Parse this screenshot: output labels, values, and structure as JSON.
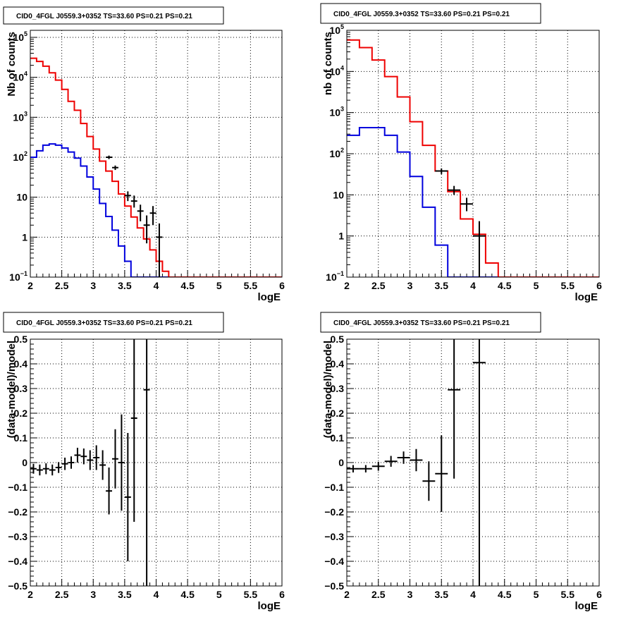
{
  "chart_data": [
    {
      "id": "top-left",
      "type": "histogram",
      "title": "CID0_4FGL J0559.3+0352 TS=33.60 PS=0.21 PS=0.21",
      "xlabel": "logE",
      "ylabel": "Nb of counts",
      "log_y": true,
      "xlim": [
        2,
        6
      ],
      "ylim": [
        0.1,
        150000
      ],
      "grid": true,
      "x_ticks": [
        "2",
        "2.5",
        "3",
        "3.5",
        "4",
        "4.5",
        "5",
        "5.5",
        "6"
      ],
      "y_ticks": [
        {
          "value": 0.1,
          "base": "10",
          "exp": "−1"
        },
        {
          "value": 1,
          "label": "1"
        },
        {
          "value": 10,
          "label": "10"
        },
        {
          "value": 100,
          "base": "10",
          "exp": "2"
        },
        {
          "value": 1000,
          "base": "10",
          "exp": "3"
        },
        {
          "value": 10000,
          "base": "10",
          "exp": "4"
        },
        {
          "value": 100000,
          "base": "10",
          "exp": "5"
        }
      ],
      "bin_edges": [
        2.0,
        2.1,
        2.2,
        2.3,
        2.4,
        2.5,
        2.6,
        2.7,
        2.8,
        2.9,
        3.0,
        3.1,
        3.2,
        3.3,
        3.4,
        3.5,
        3.6,
        3.7,
        3.8,
        3.9,
        4.0,
        4.1,
        4.2,
        4.3,
        4.4,
        4.5,
        4.6,
        4.7,
        4.8,
        4.9,
        5.0,
        5.1,
        5.2,
        5.3,
        5.4,
        5.5,
        5.6,
        5.7,
        5.8,
        5.9,
        6.0
      ],
      "model": {
        "color": "#ee0000",
        "values": [
          30000,
          25000,
          19000,
          13000,
          8500,
          5000,
          2500,
          1500,
          700,
          330,
          160,
          80,
          45,
          25,
          12,
          6,
          3.2,
          1.7,
          0.9,
          0.48,
          0.25,
          0.14,
          0.08,
          0.05,
          0.03,
          0.02,
          0.015,
          0.01,
          0.01,
          0.01,
          0.01,
          0.01,
          0.01,
          0.01,
          0.01,
          0.01,
          0.01,
          0.01,
          0.01,
          0.01
        ]
      },
      "component": {
        "color": "#0000dd",
        "values": [
          100,
          145,
          200,
          215,
          200,
          170,
          135,
          95,
          60,
          32,
          16,
          7,
          3.3,
          1.5,
          0.6,
          0.25,
          0.1,
          0.05,
          0.02,
          0.01,
          0.01,
          0.01,
          0.01,
          0.01,
          0.01,
          0.01,
          0.01,
          0.01,
          0.01,
          0.01,
          0.01,
          0.01,
          0.01,
          0.01,
          0.01,
          0.01,
          0.01,
          0.01,
          0.01,
          0.01
        ]
      },
      "data_points": [
        {
          "x": 3.25,
          "y": 100,
          "ylo": 90,
          "yhi": 110,
          "xerr": 0.05
        },
        {
          "x": 3.35,
          "y": 55,
          "ylo": 48,
          "yhi": 62,
          "xerr": 0.05
        },
        {
          "x": 3.55,
          "y": 11,
          "ylo": 8,
          "yhi": 14,
          "xerr": 0.05
        },
        {
          "x": 3.65,
          "y": 8,
          "ylo": 5.5,
          "yhi": 11,
          "xerr": 0.05
        },
        {
          "x": 3.75,
          "y": 4.5,
          "ylo": 2.5,
          "yhi": 6.5,
          "xerr": 0.05
        },
        {
          "x": 3.85,
          "y": 2,
          "ylo": 0.7,
          "yhi": 3.5,
          "xerr": 0.05
        },
        {
          "x": 3.95,
          "y": 4,
          "ylo": 2,
          "yhi": 6,
          "xerr": 0.05
        },
        {
          "x": 4.05,
          "y": 1,
          "ylo": 0.1,
          "yhi": 2.2,
          "xerr": 0.05
        }
      ]
    },
    {
      "id": "top-right",
      "type": "histogram",
      "title": "CID0_4FGL J0559.3+0352 TS=33.60 PS=0.21 PS=0.21",
      "xlabel": "logE",
      "ylabel": "nb of counts",
      "log_y": true,
      "xlim": [
        2,
        6
      ],
      "ylim": [
        0.1,
        100000
      ],
      "grid": true,
      "x_ticks": [
        "2",
        "2.5",
        "3",
        "3.5",
        "4",
        "4.5",
        "5",
        "5.5",
        "6"
      ],
      "y_ticks": [
        {
          "value": 0.1,
          "base": "10",
          "exp": "−1"
        },
        {
          "value": 1,
          "label": "1"
        },
        {
          "value": 10,
          "label": "10"
        },
        {
          "value": 100,
          "base": "10",
          "exp": "2"
        },
        {
          "value": 1000,
          "base": "10",
          "exp": "3"
        },
        {
          "value": 10000,
          "base": "10",
          "exp": "4"
        },
        {
          "value": 100000,
          "base": "10",
          "exp": "5"
        }
      ],
      "bin_edges": [
        2.0,
        2.2,
        2.4,
        2.6,
        2.8,
        3.0,
        3.2,
        3.4,
        3.6,
        3.8,
        4.0,
        4.2,
        4.4,
        4.6,
        4.8,
        5.0,
        5.2,
        5.4,
        5.6,
        5.8,
        6.0
      ],
      "model": {
        "color": "#ee0000",
        "values": [
          58000,
          38000,
          19000,
          7500,
          2400,
          600,
          160,
          38,
          12,
          2.6,
          1.1,
          0.22,
          0.05,
          0.02,
          0.01,
          0.01,
          0.01,
          0.01,
          0.01,
          0.01
        ]
      },
      "component": {
        "color": "#0000dd",
        "values": [
          280,
          430,
          430,
          280,
          110,
          28,
          5,
          0.6,
          0.06,
          0.01,
          0.01,
          0.01,
          0.01,
          0.01,
          0.01,
          0.01,
          0.01,
          0.01,
          0.01,
          0.01
        ]
      },
      "data_points": [
        {
          "x": 3.5,
          "y": 38,
          "ylo": 32,
          "yhi": 44,
          "xerr": 0.1
        },
        {
          "x": 3.7,
          "y": 13,
          "ylo": 10,
          "yhi": 16.5,
          "xerr": 0.1
        },
        {
          "x": 3.9,
          "y": 6,
          "ylo": 4,
          "yhi": 8.5,
          "xerr": 0.1
        },
        {
          "x": 4.1,
          "y": 1,
          "ylo": 0.1,
          "yhi": 2.3,
          "xerr": 0.1
        }
      ]
    },
    {
      "id": "bottom-left",
      "type": "scatter",
      "title": "CID0_4FGL J0559.3+0352 TS=33.60 PS=0.21 PS=0.21",
      "xlabel": "logE",
      "ylabel": "(data-model)/model",
      "log_y": false,
      "xlim": [
        2,
        6
      ],
      "ylim": [
        -0.5,
        0.5
      ],
      "grid": true,
      "x_ticks": [
        "2",
        "2.5",
        "3",
        "3.5",
        "4",
        "4.5",
        "5",
        "5.5",
        "6"
      ],
      "y_ticks": [
        {
          "value": 0.5,
          "label": "0.5"
        },
        {
          "value": 0.4,
          "label": "0.4"
        },
        {
          "value": 0.3,
          "label": "0.3"
        },
        {
          "value": 0.2,
          "label": "0.2"
        },
        {
          "value": 0.1,
          "label": "0.1"
        },
        {
          "value": 0,
          "label": "0"
        },
        {
          "value": -0.1,
          "label": "−0.1"
        },
        {
          "value": -0.2,
          "label": "−0.2"
        },
        {
          "value": -0.3,
          "label": "−0.3"
        },
        {
          "value": -0.4,
          "label": "−0.4"
        },
        {
          "value": -0.5,
          "label": "−0.5"
        }
      ],
      "data_points": [
        {
          "x": 2.05,
          "y": -0.025,
          "err": 0.02,
          "xerr": 0.05
        },
        {
          "x": 2.15,
          "y": -0.03,
          "err": 0.022,
          "xerr": 0.05
        },
        {
          "x": 2.25,
          "y": -0.025,
          "err": 0.022,
          "xerr": 0.05
        },
        {
          "x": 2.35,
          "y": -0.03,
          "err": 0.022,
          "xerr": 0.05
        },
        {
          "x": 2.45,
          "y": -0.02,
          "err": 0.022,
          "xerr": 0.05
        },
        {
          "x": 2.55,
          "y": -0.005,
          "err": 0.025,
          "xerr": 0.05
        },
        {
          "x": 2.65,
          "y": 0.0,
          "err": 0.025,
          "xerr": 0.05
        },
        {
          "x": 2.75,
          "y": 0.03,
          "err": 0.03,
          "xerr": 0.05
        },
        {
          "x": 2.85,
          "y": 0.025,
          "err": 0.032,
          "xerr": 0.05
        },
        {
          "x": 2.95,
          "y": 0.01,
          "err": 0.04,
          "xerr": 0.05
        },
        {
          "x": 3.05,
          "y": 0.02,
          "err": 0.05,
          "xerr": 0.05
        },
        {
          "x": 3.15,
          "y": -0.01,
          "err": 0.06,
          "xerr": 0.05
        },
        {
          "x": 3.25,
          "y": -0.115,
          "err": 0.095,
          "xerr": 0.05
        },
        {
          "x": 3.35,
          "y": 0.015,
          "err": 0.12,
          "xerr": 0.05
        },
        {
          "x": 3.45,
          "y": 0.0,
          "err": 0.195,
          "xerr": 0.05
        },
        {
          "x": 3.55,
          "y": -0.14,
          "err": 0.26,
          "xerr": 0.05
        },
        {
          "x": 3.65,
          "y": 0.18,
          "err": 0.42,
          "xerr": 0.05
        },
        {
          "x": 3.85,
          "y": 0.295,
          "err": 1.2,
          "xerr": 0.05
        }
      ]
    },
    {
      "id": "bottom-right",
      "type": "scatter",
      "title": "CID0_4FGL J0559.3+0352 TS=33.60 PS=0.21 PS=0.21",
      "xlabel": "logE",
      "ylabel": "(data-model)/model",
      "log_y": false,
      "xlim": [
        2,
        6
      ],
      "ylim": [
        -0.5,
        0.5
      ],
      "grid": true,
      "x_ticks": [
        "2",
        "2.5",
        "3",
        "3.5",
        "4",
        "4.5",
        "5",
        "5.5",
        "6"
      ],
      "y_ticks": [
        {
          "value": 0.5,
          "label": "0.5"
        },
        {
          "value": 0.4,
          "label": "0.4"
        },
        {
          "value": 0.3,
          "label": "0.3"
        },
        {
          "value": 0.2,
          "label": "0.2"
        },
        {
          "value": 0.1,
          "label": "0.1"
        },
        {
          "value": 0,
          "label": "0"
        },
        {
          "value": -0.1,
          "label": "−0.1"
        },
        {
          "value": -0.2,
          "label": "−0.2"
        },
        {
          "value": -0.3,
          "label": "−0.3"
        },
        {
          "value": -0.4,
          "label": "−0.4"
        },
        {
          "value": -0.5,
          "label": "−0.5"
        }
      ],
      "data_points": [
        {
          "x": 2.1,
          "y": -0.025,
          "err": 0.015,
          "xerr": 0.1
        },
        {
          "x": 2.3,
          "y": -0.025,
          "err": 0.015,
          "xerr": 0.1
        },
        {
          "x": 2.5,
          "y": -0.015,
          "err": 0.018,
          "xerr": 0.1
        },
        {
          "x": 2.7,
          "y": 0.005,
          "err": 0.022,
          "xerr": 0.1
        },
        {
          "x": 2.9,
          "y": 0.02,
          "err": 0.025,
          "xerr": 0.1
        },
        {
          "x": 3.1,
          "y": 0.01,
          "err": 0.045,
          "xerr": 0.1
        },
        {
          "x": 3.3,
          "y": -0.075,
          "err": 0.08,
          "xerr": 0.1
        },
        {
          "x": 3.5,
          "y": -0.045,
          "err": 0.155,
          "xerr": 0.1
        },
        {
          "x": 3.7,
          "y": 0.295,
          "err": 0.36,
          "xerr": 0.1
        },
        {
          "x": 4.1,
          "y": 0.405,
          "err": 1.2,
          "xerr": 0.1
        }
      ]
    }
  ]
}
